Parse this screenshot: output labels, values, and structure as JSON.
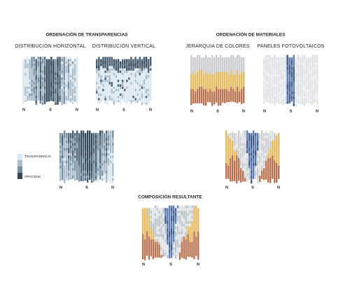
{
  "transparencias": {
    "title": "ORDENACIÓN DE TRANSPARENCIAS",
    "panels": [
      {
        "label": "DISTRIBUCIÓN HORIZONTAL",
        "orientation": [
          "N",
          "S",
          "N"
        ]
      },
      {
        "label": "DISTRIBUCIÓN VERTICAL",
        "orientation": [
          "N",
          "S",
          "N"
        ]
      }
    ],
    "combined": {
      "orientation": [
        "N",
        "S",
        "N"
      ]
    }
  },
  "materiales": {
    "title": "ORDENACIÓN DE MATERIALES",
    "panels": [
      {
        "label": "JERARQUIA DE COLORES",
        "orientation": [
          "N",
          "S",
          "N"
        ]
      },
      {
        "label": "PANELES FOTOVOLTAICOS",
        "orientation": [
          "N",
          "S",
          "N"
        ]
      }
    ],
    "combined": {
      "orientation": [
        "N",
        "S",
        "N"
      ]
    }
  },
  "legend": [
    "TRANSPARENCIA",
    "OPACIDAD"
  ],
  "resultado": {
    "title": "COMPOSICIÓN RESULTANTE",
    "orientation": [
      "N",
      "S",
      "N"
    ]
  }
}
